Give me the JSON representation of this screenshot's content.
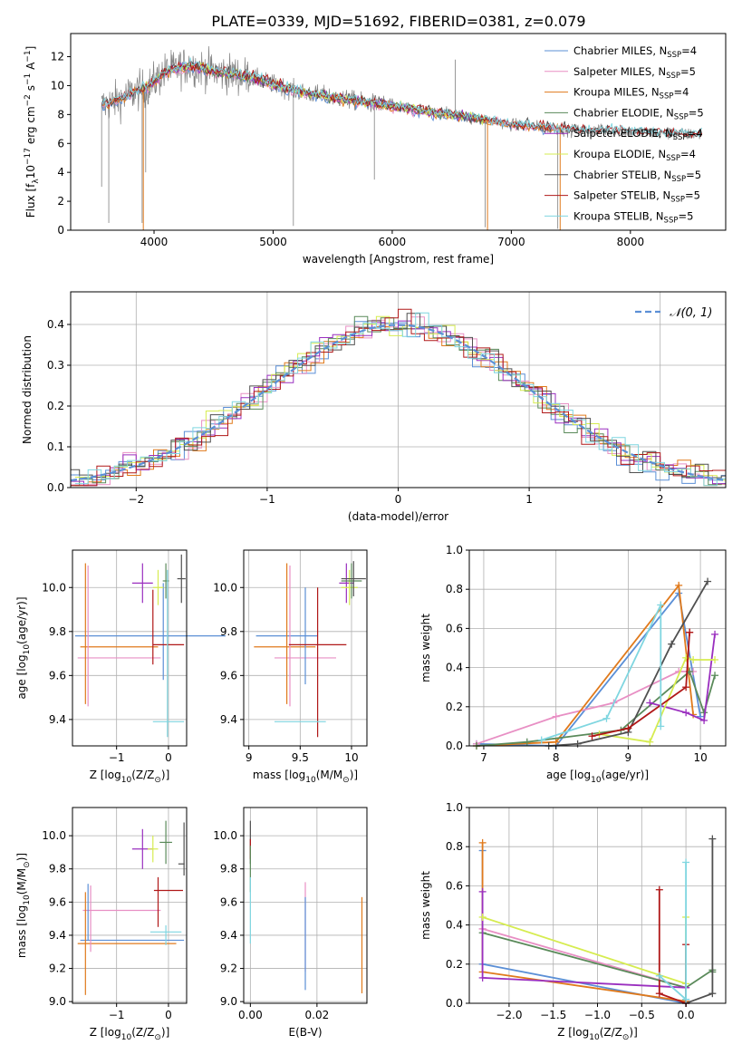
{
  "figure_title": "PLATE=0339, MJD=51692, FIBERID=0381, z=0.079",
  "colors": {
    "chabrier_miles": "#5b8fd6",
    "salpeter_miles": "#e88fc4",
    "kroupa_miles": "#e07a1c",
    "chabrier_elodie": "#5a8a5a",
    "salpeter_elodie": "#9a2fbf",
    "kroupa_elodie": "#d6ec50",
    "chabrier_stelib": "#505050",
    "salpeter_stelib": "#b01818",
    "kroupa_stelib": "#7fd6e0",
    "data": "#808080"
  },
  "chart_data": [
    {
      "id": "spectrum",
      "type": "line",
      "title": "PLATE=0339, MJD=51692, FIBERID=0381, z=0.079",
      "xlabel": "wavelength [Angstrom, rest frame]",
      "ylabel_parts": {
        "pre": "Flux [f",
        "sub1": "λ",
        "mid": "10",
        "sup1": "−17",
        "post": " erg cm",
        "sup2": "−2",
        "s": " s",
        "sup3": "−1",
        "a": " A",
        "sup4": "−1",
        "end": "]"
      },
      "xlim": [
        3300,
        8800
      ],
      "ylim": [
        0,
        13.6
      ],
      "xticks": [
        4000,
        5000,
        6000,
        7000,
        8000
      ],
      "yticks": [
        0,
        2,
        4,
        6,
        8,
        10,
        12
      ],
      "continuum": [
        [
          3560,
          8.6
        ],
        [
          3700,
          9.0
        ],
        [
          3850,
          9.6
        ],
        [
          3950,
          9.9
        ],
        [
          4100,
          11.0
        ],
        [
          4300,
          11.4
        ],
        [
          4500,
          11.0
        ],
        [
          4800,
          10.6
        ],
        [
          5000,
          10.1
        ],
        [
          5200,
          9.6
        ],
        [
          5500,
          9.2
        ],
        [
          5800,
          8.8
        ],
        [
          6000,
          8.6
        ],
        [
          6300,
          8.2
        ],
        [
          6500,
          8.0
        ],
        [
          6800,
          7.6
        ],
        [
          7000,
          7.3
        ],
        [
          7300,
          7.1
        ],
        [
          7500,
          6.9
        ],
        [
          7800,
          6.9
        ],
        [
          8000,
          6.8
        ],
        [
          8300,
          6.7
        ],
        [
          8600,
          6.6
        ]
      ],
      "legend": [
        {
          "name": "Chabrier MILES, N",
          "sub": "SSP",
          "tail": "=4",
          "color": "chabrier_miles"
        },
        {
          "name": "Salpeter MILES, N",
          "sub": "SSP",
          "tail": "=5",
          "color": "salpeter_miles"
        },
        {
          "name": "Kroupa MILES, N",
          "sub": "SSP",
          "tail": "=4",
          "color": "kroupa_miles"
        },
        {
          "name": "Chabrier ELODIE, N",
          "sub": "SSP",
          "tail": "=5",
          "color": "chabrier_elodie"
        },
        {
          "name": "Salpeter ELODIE, N",
          "sub": "SSP",
          "tail": "=4",
          "color": "salpeter_elodie"
        },
        {
          "name": "Kroupa ELODIE, N",
          "sub": "SSP",
          "tail": "=4",
          "color": "kroupa_elodie"
        },
        {
          "name": "Chabrier STELIB, N",
          "sub": "SSP",
          "tail": "=5",
          "color": "chabrier_stelib"
        },
        {
          "name": "Salpeter STELIB, N",
          "sub": "SSP",
          "tail": "=5",
          "color": "salpeter_stelib"
        },
        {
          "name": "Kroupa STELIB, N",
          "sub": "SSP",
          "tail": "=5",
          "color": "kroupa_stelib"
        }
      ],
      "legend_loc": "upper-right"
    },
    {
      "id": "residuals",
      "type": "histogram",
      "xlabel": "(data-model)/error",
      "ylabel": "Normed distribution",
      "xlim": [
        -2.5,
        2.5
      ],
      "ylim": [
        0,
        0.48
      ],
      "xticks": [
        -2,
        -1,
        0,
        1,
        2
      ],
      "yticks": [
        0.0,
        0.1,
        0.2,
        0.3,
        0.4
      ],
      "grid": true,
      "bin_width": 0.1,
      "gaussian": {
        "label": "N(0,1)",
        "mu": 0,
        "sigma": 1
      },
      "legend_loc": "upper-right"
    },
    {
      "id": "age_vs_z",
      "type": "errorbar",
      "xlabel_parts": {
        "pre": "Z [log",
        "sub": "10",
        "post": "(Z/Z",
        "sun": "⊙",
        "end": ")]"
      },
      "ylabel_parts": {
        "pre": "age  [log",
        "sub": "10",
        "post": "(age/yr)]"
      },
      "xlim": [
        -1.85,
        0.35
      ],
      "ylim": [
        9.28,
        10.17
      ],
      "xticks": [
        -1,
        0
      ],
      "yticks": [
        9.4,
        9.6,
        9.8,
        10.0
      ],
      "grid": true,
      "points": [
        {
          "color": "chabrier_miles",
          "x": -0.35,
          "xerr": 1.45,
          "y": 9.78,
          "yerr": 0.0
        },
        {
          "color": "salpeter_miles",
          "x": -0.95,
          "xerr": 0.8,
          "y": 9.68,
          "yerr": 0.0
        },
        {
          "color": "kroupa_miles",
          "x": -0.95,
          "xerr": 0.75,
          "y": 9.73,
          "yerr": 0.0
        },
        {
          "color": "kroupa_miles",
          "x": -1.6,
          "xerr": 0.0,
          "y": 9.79,
          "yerr": 0.32
        },
        {
          "color": "salpeter_miles",
          "x": -1.55,
          "xerr": 0.0,
          "y": 9.78,
          "yerr": 0.32
        },
        {
          "color": "chabrier_miles",
          "x": -0.1,
          "xerr": 0.0,
          "y": 9.8,
          "yerr": 0.22
        },
        {
          "color": "salpeter_elodie",
          "x": -0.5,
          "xerr": 0.2,
          "y": 10.02,
          "yerr": 0.09
        },
        {
          "color": "kroupa_elodie",
          "x": -0.2,
          "xerr": 0.1,
          "y": 10.0,
          "yerr": 0.08
        },
        {
          "color": "chabrier_elodie",
          "x": -0.05,
          "xerr": 0.06,
          "y": 10.03,
          "yerr": 0.08
        },
        {
          "color": "chabrier_stelib",
          "x": 0.25,
          "xerr": 0.08,
          "y": 10.04,
          "yerr": 0.11
        },
        {
          "color": "salpeter_stelib",
          "x": -0.3,
          "xerr": 0.0,
          "y": 9.82,
          "yerr": 0.17
        },
        {
          "color": "salpeter_stelib",
          "x": 0.0,
          "xerr": 0.3,
          "y": 9.74,
          "yerr": 0.0
        },
        {
          "color": "kroupa_stelib",
          "x": 0.0,
          "xerr": 0.3,
          "y": 9.39,
          "yerr": 0.0
        },
        {
          "color": "kroupa_stelib",
          "x": -0.02,
          "xerr": 0.0,
          "y": 9.7,
          "yerr": 0.38
        }
      ]
    },
    {
      "id": "age_vs_mass",
      "type": "errorbar",
      "xlabel_parts": {
        "pre": "mass [log",
        "sub": "10",
        "post": "(M/M",
        "sun": "⊙",
        "end": ")]"
      },
      "xlim": [
        8.95,
        10.15
      ],
      "ylim": [
        9.28,
        10.17
      ],
      "xticks": [
        9.0,
        9.5,
        10.0
      ],
      "yticks": [
        9.4,
        9.6,
        9.8,
        10.0
      ],
      "grid": true,
      "points": [
        {
          "color": "chabrier_miles",
          "x": 9.37,
          "xerr": 0.3,
          "y": 9.78,
          "yerr": 0.0
        },
        {
          "color": "kroupa_miles",
          "x": 9.35,
          "xerr": 0.3,
          "y": 9.73,
          "yerr": 0.0
        },
        {
          "color": "salpeter_miles",
          "x": 9.55,
          "xerr": 0.3,
          "y": 9.68,
          "yerr": 0.0
        },
        {
          "color": "kroupa_miles",
          "x": 9.37,
          "xerr": 0.0,
          "y": 9.79,
          "yerr": 0.32
        },
        {
          "color": "salpeter_miles",
          "x": 9.4,
          "xerr": 0.0,
          "y": 9.78,
          "yerr": 0.32
        },
        {
          "color": "chabrier_miles",
          "x": 9.55,
          "xerr": 0.0,
          "y": 9.78,
          "yerr": 0.22
        },
        {
          "color": "salpeter_stelib",
          "x": 9.67,
          "xerr": 0.28,
          "y": 9.74,
          "yerr": 0.0
        },
        {
          "color": "salpeter_stelib",
          "x": 9.67,
          "xerr": 0.0,
          "y": 9.66,
          "yerr": 0.34
        },
        {
          "color": "kroupa_stelib",
          "x": 9.5,
          "xerr": 0.25,
          "y": 9.39,
          "yerr": 0.0
        },
        {
          "color": "salpeter_elodie",
          "x": 9.95,
          "xerr": 0.07,
          "y": 10.02,
          "yerr": 0.09
        },
        {
          "color": "kroupa_elodie",
          "x": 9.98,
          "xerr": 0.08,
          "y": 10.0,
          "yerr": 0.08
        },
        {
          "color": "chabrier_elodie",
          "x": 10.0,
          "xerr": 0.1,
          "y": 10.03,
          "yerr": 0.08
        },
        {
          "color": "chabrier_stelib",
          "x": 10.02,
          "xerr": 0.12,
          "y": 10.04,
          "yerr": 0.08
        }
      ]
    },
    {
      "id": "weight_vs_age",
      "type": "line",
      "xlabel_parts": {
        "pre": "age  [log",
        "sub": "10",
        "post": "(age/yr)]"
      },
      "ylabel": "mass weight",
      "xlim": [
        6.8,
        10.35
      ],
      "ylim": [
        0,
        1.0
      ],
      "xticks": [
        7,
        8,
        9,
        10
      ],
      "yticks": [
        0.0,
        0.2,
        0.4,
        0.6,
        0.8,
        1.0
      ],
      "grid": true,
      "series": [
        {
          "color": "chabrier_miles",
          "x": [
            6.9,
            8.0,
            9.7,
            10.0
          ],
          "y": [
            0.01,
            0.0,
            0.78,
            0.15
          ]
        },
        {
          "color": "salpeter_miles",
          "x": [
            6.9,
            8.0,
            8.8,
            9.7,
            9.9
          ],
          "y": [
            0.01,
            0.15,
            0.22,
            0.38,
            0.38
          ]
        },
        {
          "color": "kroupa_miles",
          "x": [
            6.9,
            8.0,
            9.7,
            9.9
          ],
          "y": [
            0.0,
            0.02,
            0.82,
            0.16
          ]
        },
        {
          "color": "chabrier_elodie",
          "x": [
            6.9,
            7.6,
            8.9,
            9.85,
            10.05,
            10.2
          ],
          "y": [
            0.0,
            0.02,
            0.08,
            0.38,
            0.17,
            0.36
          ]
        },
        {
          "color": "salpeter_elodie",
          "x": [
            9.3,
            9.8,
            10.05,
            10.2
          ],
          "y": [
            0.22,
            0.17,
            0.13,
            0.57
          ]
        },
        {
          "color": "kroupa_elodie",
          "x": [
            8.6,
            9.3,
            9.8,
            9.9,
            10.2
          ],
          "y": [
            0.06,
            0.02,
            0.45,
            0.44,
            0.44
          ]
        },
        {
          "color": "chabrier_stelib",
          "x": [
            7.9,
            8.3,
            9.0,
            9.6,
            10.1
          ],
          "y": [
            0.0,
            0.01,
            0.07,
            0.52,
            0.84
          ]
        },
        {
          "color": "salpeter_stelib",
          "x": [
            8.5,
            9.0,
            9.8,
            9.85,
            9.85
          ],
          "y": [
            0.05,
            0.09,
            0.3,
            0.58,
            0.58
          ]
        },
        {
          "color": "kroupa_stelib",
          "x": [
            7.8,
            8.7,
            9.45,
            9.45
          ],
          "y": [
            0.03,
            0.14,
            0.72,
            0.1
          ]
        }
      ]
    },
    {
      "id": "mass_vs_z",
      "type": "errorbar",
      "xlabel_parts": {
        "pre": "Z [log",
        "sub": "10",
        "post": "(Z/Z",
        "sun": "⊙",
        "end": ")]"
      },
      "ylabel_parts": {
        "pre": "mass [log",
        "sub": "10",
        "post": "(M/M",
        "sun": "⊙",
        "end": ")]"
      },
      "xlim": [
        -1.85,
        0.35
      ],
      "ylim": [
        8.99,
        10.17
      ],
      "xticks": [
        -1,
        0
      ],
      "yticks": [
        9.0,
        9.2,
        9.4,
        9.6,
        9.8,
        10.0
      ],
      "grid": true,
      "points": [
        {
          "color": "chabrier_miles",
          "x": -0.7,
          "xerr": 1.0,
          "y": 9.37,
          "yerr": 0.0
        },
        {
          "color": "kroupa_miles",
          "x": -0.8,
          "xerr": 0.95,
          "y": 9.35,
          "yerr": 0.0
        },
        {
          "color": "salpeter_miles",
          "x": -0.9,
          "xerr": 0.75,
          "y": 9.55,
          "yerr": 0.0
        },
        {
          "color": "kroupa_miles",
          "x": -1.6,
          "xerr": 0.0,
          "y": 9.35,
          "yerr": 0.31
        },
        {
          "color": "chabrier_miles",
          "x": -1.55,
          "xerr": 0.0,
          "y": 9.54,
          "yerr": 0.17
        },
        {
          "color": "salpeter_miles",
          "x": -1.5,
          "xerr": 0.0,
          "y": 9.5,
          "yerr": 0.2
        },
        {
          "color": "kroupa_stelib",
          "x": -0.05,
          "xerr": 0.3,
          "y": 9.42,
          "yerr": 0.0
        },
        {
          "color": "kroupa_stelib",
          "x": -0.05,
          "xerr": 0.0,
          "y": 9.4,
          "yerr": 0.06
        },
        {
          "color": "salpeter_stelib",
          "x": 0.0,
          "xerr": 0.28,
          "y": 9.67,
          "yerr": 0.0
        },
        {
          "color": "salpeter_stelib",
          "x": -0.2,
          "xerr": 0.0,
          "y": 9.6,
          "yerr": 0.15
        },
        {
          "color": "salpeter_elodie",
          "x": -0.5,
          "xerr": 0.2,
          "y": 9.92,
          "yerr": 0.12
        },
        {
          "color": "kroupa_elodie",
          "x": -0.3,
          "xerr": 0.1,
          "y": 9.92,
          "yerr": 0.08
        },
        {
          "color": "chabrier_elodie",
          "x": -0.05,
          "xerr": 0.12,
          "y": 9.96,
          "yerr": 0.13
        },
        {
          "color": "chabrier_stelib",
          "x": 0.25,
          "xerr": 0.06,
          "y": 9.83,
          "yerr": 0.0
        },
        {
          "color": "chabrier_stelib",
          "x": 0.3,
          "xerr": 0.0,
          "y": 9.92,
          "yerr": 0.16
        }
      ]
    },
    {
      "id": "mass_vs_ebv",
      "type": "errorbar",
      "xlabel": "E(B-V)",
      "xlim": [
        -0.002,
        0.035
      ],
      "ylim": [
        8.99,
        10.17
      ],
      "xticks": [
        0.0,
        0.02
      ],
      "ytick_labels": [
        "9.0",
        "9.2",
        "9.4",
        "9.6",
        "9.8",
        "10.0"
      ],
      "xtick_labels": [
        "0.00",
        "0.02"
      ],
      "yticks": [
        9.0,
        9.2,
        9.4,
        9.6,
        9.8,
        10.0
      ],
      "grid": true,
      "points": [
        {
          "color": "chabrier_stelib",
          "x": 0.0,
          "xerr": 0.0,
          "y": 9.96,
          "yerr": 0.13
        },
        {
          "color": "salpeter_stelib",
          "x": 0.0,
          "xerr": 0.0,
          "y": 9.92,
          "yerr": 0.06
        },
        {
          "color": "chabrier_elodie",
          "x": 0.0,
          "xerr": 0.0,
          "y": 9.8,
          "yerr": 0.14
        },
        {
          "color": "kroupa_stelib",
          "x": 0.0,
          "xerr": 0.0,
          "y": 9.55,
          "yerr": 0.2
        },
        {
          "color": "salpeter_miles",
          "x": 0.0165,
          "xerr": 0.0,
          "y": 9.45,
          "yerr": 0.27
        },
        {
          "color": "chabrier_miles",
          "x": 0.0165,
          "xerr": 0.0,
          "y": 9.35,
          "yerr": 0.28
        },
        {
          "color": "kroupa_miles",
          "x": 0.0335,
          "xerr": 0.0,
          "y": 9.34,
          "yerr": 0.29
        }
      ]
    },
    {
      "id": "weight_vs_z",
      "type": "line",
      "xlabel_parts": {
        "pre": "Z [log",
        "sub": "10",
        "post": "(Z/Z",
        "sun": "⊙",
        "end": ")]"
      },
      "ylabel": "mass weight",
      "xlim": [
        -2.45,
        0.45
      ],
      "ylim": [
        0,
        1.0
      ],
      "xticks": [
        -2.0,
        -1.5,
        -1.0,
        -0.5,
        0.0
      ],
      "xtick_labels": [
        "−2.0",
        "−1.5",
        "−1.0",
        "−0.5",
        "0.0"
      ],
      "yticks": [
        0.0,
        0.2,
        0.4,
        0.6,
        0.8,
        1.0
      ],
      "grid": true,
      "series": [
        {
          "color": "chabrier_miles",
          "x": [
            -2.3,
            -2.3,
            0.0,
            0.0
          ],
          "y": [
            0.78,
            0.2,
            0.0,
            0.02
          ]
        },
        {
          "color": "salpeter_miles",
          "x": [
            -2.3,
            -2.3,
            0.0
          ],
          "y": [
            0.38,
            0.38,
            0.08
          ]
        },
        {
          "color": "kroupa_miles",
          "x": [
            -2.3,
            -2.3,
            0.0
          ],
          "y": [
            0.82,
            0.16,
            0.01
          ]
        },
        {
          "color": "chabrier_elodie",
          "x": [
            -2.3,
            0.0,
            0.3,
            0.3
          ],
          "y": [
            0.36,
            0.08,
            0.17,
            0.16
          ]
        },
        {
          "color": "salpeter_elodie",
          "x": [
            -2.3,
            -2.3,
            0.0
          ],
          "y": [
            0.57,
            0.13,
            0.08
          ]
        },
        {
          "color": "kroupa_elodie",
          "x": [
            -2.3,
            0.0,
            0.0
          ],
          "y": [
            0.44,
            0.1,
            0.44
          ]
        },
        {
          "color": "chabrier_stelib",
          "x": [
            0.0,
            0.3,
            0.3
          ],
          "y": [
            0.0,
            0.05,
            0.84
          ]
        },
        {
          "color": "salpeter_stelib",
          "x": [
            -0.3,
            -0.3,
            0.0,
            0.0
          ],
          "y": [
            0.58,
            0.05,
            0.0,
            0.3
          ]
        },
        {
          "color": "kroupa_stelib",
          "x": [
            -0.3,
            0.0,
            0.0
          ],
          "y": [
            0.14,
            0.02,
            0.72
          ]
        }
      ]
    }
  ]
}
